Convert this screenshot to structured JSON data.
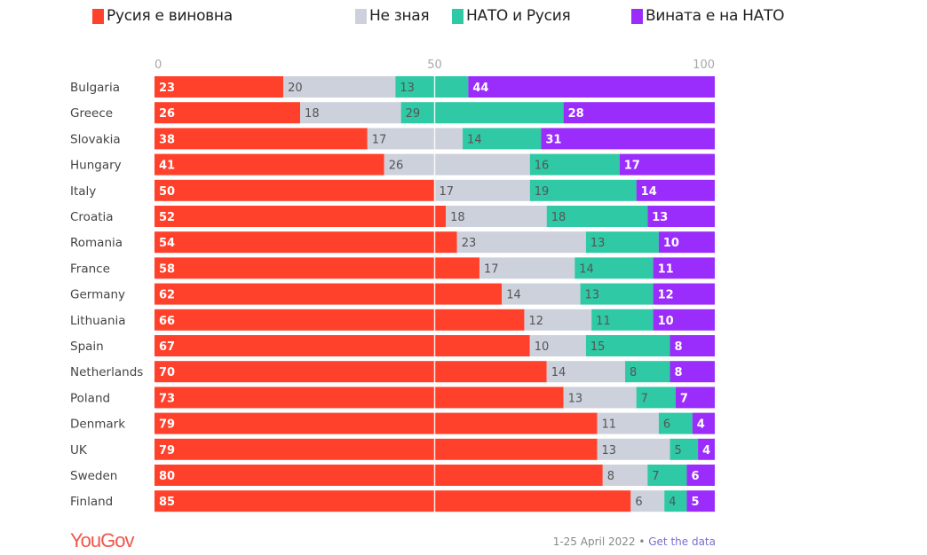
{
  "chart_data": {
    "type": "bar",
    "orientation": "horizontal",
    "stacked": true,
    "title": "",
    "xlabel": "",
    "ylabel": "",
    "xlim": [
      0,
      100
    ],
    "x_ticks": [
      "0",
      "50",
      "100"
    ],
    "grid": false,
    "legend_position": "top",
    "categories": [
      "Bulgaria",
      "Greece",
      "Slovakia",
      "Hungary",
      "Italy",
      "Croatia",
      "Romania",
      "France",
      "Germany",
      "Lithuania",
      "Spain",
      "Netherlands",
      "Poland",
      "Denmark",
      "UK",
      "Sweden",
      "Finland"
    ],
    "series": [
      {
        "name": "Русия е виновна",
        "color": "#ff412c",
        "label_style": "light",
        "values": [
          23,
          26,
          38,
          41,
          50,
          52,
          54,
          58,
          62,
          66,
          67,
          70,
          73,
          79,
          79,
          80,
          85
        ]
      },
      {
        "name": "Не зная",
        "color": "#cdd1dc",
        "label_style": "dark",
        "values": [
          20,
          18,
          17,
          26,
          17,
          18,
          23,
          17,
          14,
          12,
          10,
          14,
          13,
          11,
          13,
          8,
          6
        ]
      },
      {
        "name": "НАТО и Русия",
        "color": "#2fc9a5",
        "label_style": "dark",
        "values": [
          13,
          29,
          14,
          16,
          19,
          18,
          13,
          14,
          13,
          11,
          15,
          8,
          7,
          6,
          5,
          7,
          4
        ]
      },
      {
        "name": "Вината е на НАТО",
        "color": "#9b2dfc",
        "label_style": "light",
        "values": [
          44,
          28,
          31,
          17,
          14,
          13,
          10,
          11,
          12,
          10,
          8,
          8,
          7,
          4,
          4,
          6,
          5
        ]
      }
    ]
  },
  "footer": {
    "brand": "YouGov",
    "date": "1-25 April 2022",
    "separator": " • ",
    "link": "Get the data"
  }
}
